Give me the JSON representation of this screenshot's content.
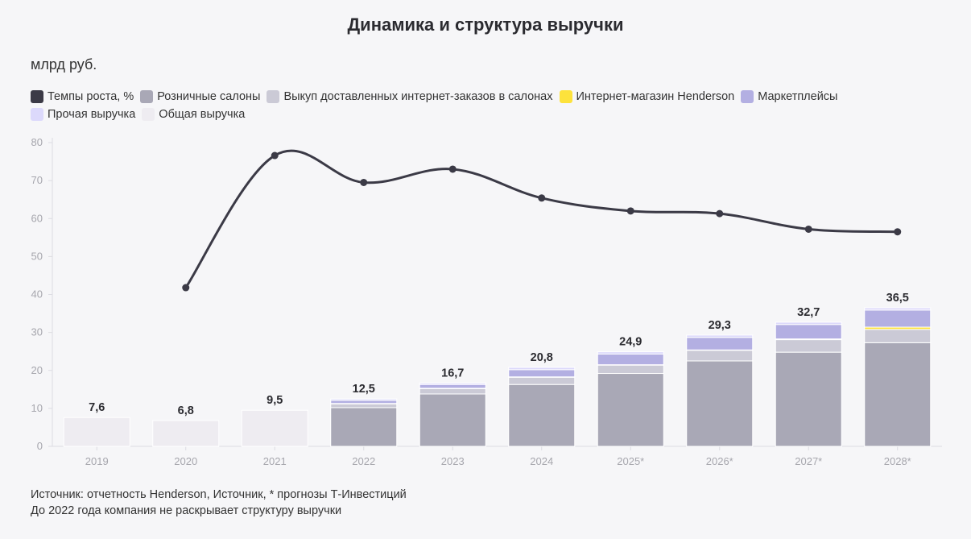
{
  "title": "Динамика и структура выручки",
  "unit": "млрд руб.",
  "notes": {
    "source": "Источник: отчетность Henderson, Источник, * прогнозы Т-Инвестиций",
    "disclaimer": "До 2022 года компания не раскрывает структуру выручки"
  },
  "legend": [
    {
      "label": "Темпы роста, %",
      "color": "#3b3a46"
    },
    {
      "label": "Розничные салоны",
      "color": "#a9a8b6"
    },
    {
      "label": "Выкуп доставленных интернет-заказов в салонах",
      "color": "#cbcad6"
    },
    {
      "label": "Интернет-магазин Henderson",
      "color": "#fde23c"
    },
    {
      "label": "Маркетплейсы",
      "color": "#b3afe2"
    },
    {
      "label": "Прочая выручка",
      "color": "#dcd9fb"
    },
    {
      "label": "Общая выручка",
      "color": "#eeecf1"
    }
  ],
  "chart_data": {
    "type": "bar",
    "categories": [
      "2019",
      "2020",
      "2021",
      "2022",
      "2023",
      "2024",
      "2025*",
      "2026*",
      "2027*",
      "2028*"
    ],
    "ylim": [
      0,
      80
    ],
    "yticks": [
      0,
      10,
      20,
      30,
      40,
      50,
      60,
      70,
      80
    ],
    "totals": [
      7.6,
      6.8,
      9.5,
      12.5,
      16.7,
      20.8,
      24.9,
      29.3,
      32.7,
      36.5
    ],
    "total_labels": [
      "7,6",
      "6,8",
      "9,5",
      "12,5",
      "16,7",
      "20,8",
      "24,9",
      "29,3",
      "32,7",
      "36,5"
    ],
    "series": [
      {
        "name": "Общая выручка",
        "values": [
          7.6,
          6.8,
          9.5,
          null,
          null,
          null,
          null,
          null,
          null,
          null
        ]
      },
      {
        "name": "Розничные салоны",
        "values": [
          null,
          null,
          null,
          10.2,
          13.8,
          16.3,
          19.2,
          22.5,
          24.8,
          27.3
        ]
      },
      {
        "name": "Выкуп доставленных интернет-заказов в салонах",
        "values": [
          null,
          null,
          null,
          1.0,
          1.4,
          1.9,
          2.2,
          2.8,
          3.3,
          3.5
        ]
      },
      {
        "name": "Интернет-магазин Henderson",
        "values": [
          null,
          null,
          null,
          0.1,
          0.1,
          0.1,
          0.1,
          0.1,
          0.2,
          0.6
        ]
      },
      {
        "name": "Маркетплейсы",
        "values": [
          null,
          null,
          null,
          0.8,
          1.0,
          1.9,
          2.8,
          3.3,
          3.8,
          4.5
        ]
      },
      {
        "name": "Прочая выручка",
        "values": [
          null,
          null,
          null,
          0.4,
          0.4,
          0.6,
          0.6,
          0.6,
          0.6,
          0.6
        ]
      }
    ],
    "line": {
      "name": "Темпы роста, %",
      "values": [
        null,
        41.8,
        76.6,
        69.5,
        73.0,
        65.4,
        62.0,
        61.3,
        57.2,
        56.5
      ]
    }
  }
}
